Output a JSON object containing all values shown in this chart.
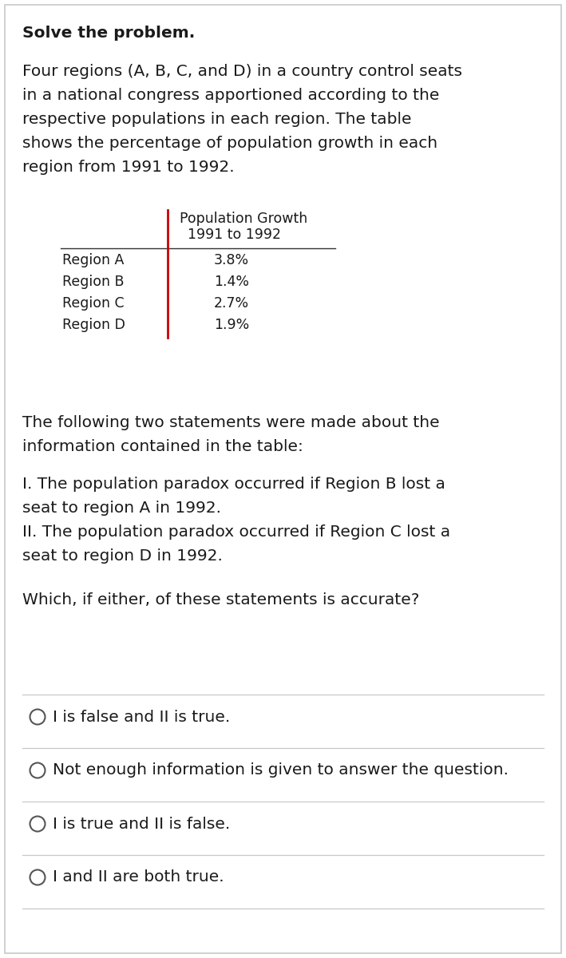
{
  "bg_color": "#ffffff",
  "border_color": "#c8c8c8",
  "title": "Solve the problem.",
  "paragraph1_lines": [
    "Four regions (A, B, C, and D) in a country control seats",
    "in a national congress apportioned according to the",
    "respective populations in each region. The table",
    "shows the percentage of population growth in each",
    "region from 1991 to 1992."
  ],
  "table_header_line1": "Population Growth",
  "table_header_line2": "1991 to 1992",
  "table_rows": [
    [
      "Region A",
      "3.8%"
    ],
    [
      "Region B",
      "1.4%"
    ],
    [
      "Region C",
      "2.7%"
    ],
    [
      "Region D",
      "1.9%"
    ]
  ],
  "paragraph2_lines": [
    "The following two statements were made about the",
    "information contained in the table:"
  ],
  "statement1_lines": [
    "I. The population paradox occurred if Region B lost a",
    "seat to region A in 1992."
  ],
  "statement2_lines": [
    "II. The population paradox occurred if Region C lost a",
    "seat to region D in 1992."
  ],
  "question": "Which, if either, of these statements is accurate?",
  "choices": [
    "I is false and II is true.",
    "Not enough information is given to answer the question.",
    "I is true and II is false.",
    "I and II are both true."
  ],
  "text_color": "#1a1a1a",
  "divider_color": "#c8c8c8",
  "circle_color": "#555555",
  "table_line_color": "#cc0000",
  "font_size_main": 14.5,
  "font_size_table": 12.5
}
